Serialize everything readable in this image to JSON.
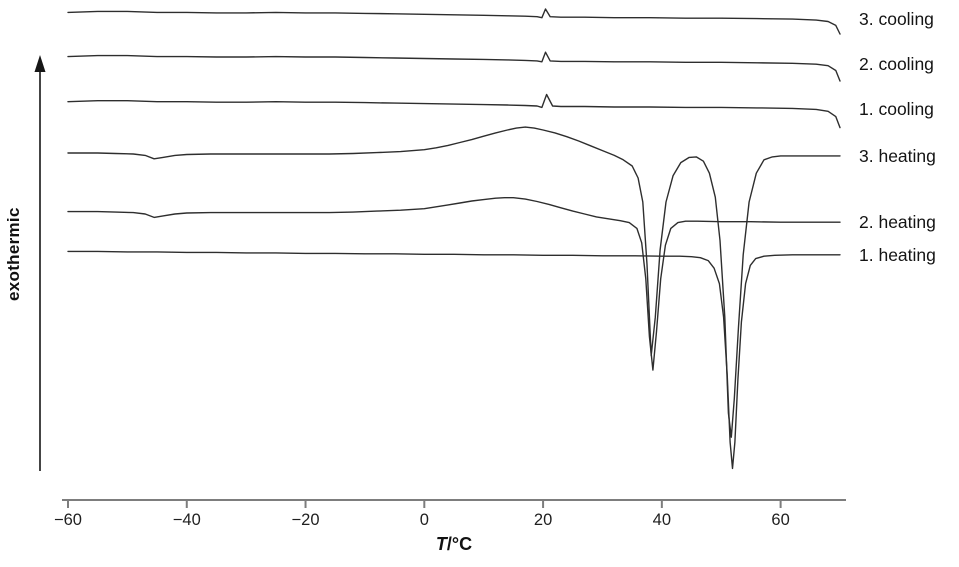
{
  "figure": {
    "ylabel": "exothermic",
    "xlabel": {
      "symbol": "T",
      "unit": "/°C"
    }
  },
  "chart_data": {
    "type": "line",
    "title": "",
    "xlabel": "T/°C",
    "ylabel": "exothermic",
    "x_range": [
      -60,
      70
    ],
    "x_ticks": [
      {
        "value": -60,
        "label": "−60"
      },
      {
        "value": -40,
        "label": "−40"
      },
      {
        "value": -20,
        "label": "−20"
      },
      {
        "value": 0,
        "label": "0"
      },
      {
        "value": 20,
        "label": "20"
      },
      {
        "value": 40,
        "label": "40"
      },
      {
        "value": 60,
        "label": "60"
      }
    ],
    "y_axis_note": "exothermic up, arbitrary units, no numeric scale shown",
    "curve_color": "#2e2e2e",
    "axis_color": "#7d7d7d",
    "legend_position": "right of each curve",
    "series": [
      {
        "name": "3. cooling",
        "points": [
          [
            -60,
            9.95
          ],
          [
            -55,
            9.97
          ],
          [
            -50,
            9.97
          ],
          [
            -45,
            9.95
          ],
          [
            -40,
            9.95
          ],
          [
            -35,
            9.94
          ],
          [
            -30,
            9.94
          ],
          [
            -25,
            9.95
          ],
          [
            -20,
            9.94
          ],
          [
            -15,
            9.94
          ],
          [
            -10,
            9.93
          ],
          [
            -5,
            9.92
          ],
          [
            0,
            9.91
          ],
          [
            5,
            9.9
          ],
          [
            10,
            9.89
          ],
          [
            14,
            9.88
          ],
          [
            17,
            9.87
          ],
          [
            19,
            9.86
          ],
          [
            19.8,
            9.84
          ],
          [
            20.4,
            10.02
          ],
          [
            21.2,
            9.86
          ],
          [
            23,
            9.85
          ],
          [
            27,
            9.85
          ],
          [
            32,
            9.84
          ],
          [
            38,
            9.84
          ],
          [
            44,
            9.83
          ],
          [
            50,
            9.83
          ],
          [
            56,
            9.82
          ],
          [
            62,
            9.81
          ],
          [
            66,
            9.79
          ],
          [
            68,
            9.76
          ],
          [
            69.3,
            9.68
          ],
          [
            70,
            9.5
          ]
        ]
      },
      {
        "name": "2. cooling",
        "points": [
          [
            -60,
            9.03
          ],
          [
            -55,
            9.05
          ],
          [
            -50,
            9.05
          ],
          [
            -45,
            9.03
          ],
          [
            -40,
            9.03
          ],
          [
            -35,
            9.02
          ],
          [
            -30,
            9.02
          ],
          [
            -25,
            9.03
          ],
          [
            -20,
            9.02
          ],
          [
            -15,
            9.02
          ],
          [
            -10,
            9.01
          ],
          [
            -5,
            9.0
          ],
          [
            0,
            8.99
          ],
          [
            5,
            8.98
          ],
          [
            10,
            8.97
          ],
          [
            14,
            8.96
          ],
          [
            17,
            8.95
          ],
          [
            19,
            8.94
          ],
          [
            19.8,
            8.92
          ],
          [
            20.4,
            9.12
          ],
          [
            21.2,
            8.94
          ],
          [
            23,
            8.93
          ],
          [
            27,
            8.93
          ],
          [
            32,
            8.92
          ],
          [
            38,
            8.92
          ],
          [
            44,
            8.91
          ],
          [
            50,
            8.91
          ],
          [
            56,
            8.9
          ],
          [
            62,
            8.89
          ],
          [
            66,
            8.87
          ],
          [
            68,
            8.84
          ],
          [
            69.3,
            8.74
          ],
          [
            70,
            8.52
          ]
        ]
      },
      {
        "name": "1. cooling",
        "points": [
          [
            -60,
            8.09
          ],
          [
            -55,
            8.11
          ],
          [
            -50,
            8.11
          ],
          [
            -45,
            8.09
          ],
          [
            -40,
            8.09
          ],
          [
            -35,
            8.08
          ],
          [
            -30,
            8.08
          ],
          [
            -25,
            8.09
          ],
          [
            -20,
            8.08
          ],
          [
            -15,
            8.08
          ],
          [
            -10,
            8.07
          ],
          [
            -5,
            8.06
          ],
          [
            0,
            8.05
          ],
          [
            5,
            8.04
          ],
          [
            10,
            8.03
          ],
          [
            14,
            8.02
          ],
          [
            17,
            8.01
          ],
          [
            19,
            8.0
          ],
          [
            19.8,
            7.97
          ],
          [
            20.6,
            8.24
          ],
          [
            21.6,
            8.0
          ],
          [
            23,
            7.99
          ],
          [
            27,
            7.99
          ],
          [
            32,
            7.98
          ],
          [
            38,
            7.98
          ],
          [
            44,
            7.97
          ],
          [
            50,
            7.97
          ],
          [
            56,
            7.96
          ],
          [
            62,
            7.95
          ],
          [
            66,
            7.93
          ],
          [
            68,
            7.89
          ],
          [
            69.3,
            7.78
          ],
          [
            70,
            7.55
          ]
        ]
      },
      {
        "name": "3. heating",
        "points": [
          [
            -60,
            7.02
          ],
          [
            -55,
            7.02
          ],
          [
            -52,
            7.01
          ],
          [
            -49,
            7.0
          ],
          [
            -47,
            6.97
          ],
          [
            -45.5,
            6.9
          ],
          [
            -44,
            6.93
          ],
          [
            -42,
            6.97
          ],
          [
            -40,
            6.99
          ],
          [
            -36,
            7.0
          ],
          [
            -32,
            7.0
          ],
          [
            -28,
            7.0
          ],
          [
            -24,
            7.0
          ],
          [
            -20,
            7.0
          ],
          [
            -16,
            7.0
          ],
          [
            -12,
            7.01
          ],
          [
            -8,
            7.03
          ],
          [
            -4,
            7.05
          ],
          [
            0,
            7.09
          ],
          [
            2,
            7.13
          ],
          [
            4,
            7.18
          ],
          [
            6,
            7.24
          ],
          [
            8,
            7.3
          ],
          [
            10,
            7.37
          ],
          [
            12,
            7.44
          ],
          [
            14,
            7.5
          ],
          [
            15.5,
            7.54
          ],
          [
            17,
            7.56
          ],
          [
            18.5,
            7.54
          ],
          [
            20,
            7.5
          ],
          [
            22,
            7.44
          ],
          [
            24,
            7.36
          ],
          [
            26,
            7.27
          ],
          [
            28,
            7.17
          ],
          [
            30,
            7.07
          ],
          [
            32,
            6.97
          ],
          [
            33.5,
            6.88
          ],
          [
            35,
            6.75
          ],
          [
            36,
            6.5
          ],
          [
            36.8,
            6.0
          ],
          [
            37.5,
            4.7
          ],
          [
            38.2,
            2.8
          ],
          [
            38.9,
            3.6
          ],
          [
            39.7,
            5.0
          ],
          [
            40.7,
            6.0
          ],
          [
            41.9,
            6.55
          ],
          [
            43.2,
            6.82
          ],
          [
            44.6,
            6.93
          ],
          [
            45.8,
            6.94
          ],
          [
            47,
            6.85
          ],
          [
            48,
            6.6
          ],
          [
            49,
            6.1
          ],
          [
            49.8,
            5.2
          ],
          [
            50.6,
            3.6
          ],
          [
            51.2,
            1.6
          ],
          [
            51.7,
            1.1
          ],
          [
            52.2,
            1.9
          ],
          [
            52.9,
            3.4
          ],
          [
            53.7,
            4.9
          ],
          [
            54.7,
            6.0
          ],
          [
            55.9,
            6.6
          ],
          [
            57.2,
            6.88
          ],
          [
            58.6,
            6.94
          ],
          [
            60,
            6.96
          ],
          [
            64,
            6.96
          ],
          [
            68,
            6.96
          ],
          [
            70,
            6.96
          ]
        ]
      },
      {
        "name": "2. heating",
        "points": [
          [
            -60,
            5.8
          ],
          [
            -55,
            5.8
          ],
          [
            -52,
            5.79
          ],
          [
            -49,
            5.78
          ],
          [
            -47,
            5.75
          ],
          [
            -45.5,
            5.68
          ],
          [
            -44,
            5.71
          ],
          [
            -42,
            5.75
          ],
          [
            -40,
            5.77
          ],
          [
            -36,
            5.78
          ],
          [
            -32,
            5.78
          ],
          [
            -28,
            5.78
          ],
          [
            -24,
            5.78
          ],
          [
            -20,
            5.78
          ],
          [
            -16,
            5.78
          ],
          [
            -12,
            5.79
          ],
          [
            -8,
            5.81
          ],
          [
            -4,
            5.83
          ],
          [
            0,
            5.86
          ],
          [
            2,
            5.9
          ],
          [
            4,
            5.94
          ],
          [
            6,
            5.98
          ],
          [
            8,
            6.02
          ],
          [
            10,
            6.05
          ],
          [
            12,
            6.08
          ],
          [
            13.5,
            6.09
          ],
          [
            15,
            6.09
          ],
          [
            17,
            6.06
          ],
          [
            19,
            6.01
          ],
          [
            21,
            5.95
          ],
          [
            23,
            5.88
          ],
          [
            25,
            5.81
          ],
          [
            27,
            5.75
          ],
          [
            29,
            5.69
          ],
          [
            31,
            5.65
          ],
          [
            33,
            5.61
          ],
          [
            34.5,
            5.57
          ],
          [
            35.8,
            5.45
          ],
          [
            36.6,
            5.15
          ],
          [
            37.3,
            4.4
          ],
          [
            37.9,
            3.2
          ],
          [
            38.5,
            2.5
          ],
          [
            39.1,
            3.3
          ],
          [
            39.8,
            4.4
          ],
          [
            40.6,
            5.1
          ],
          [
            41.5,
            5.45
          ],
          [
            42.7,
            5.57
          ],
          [
            44,
            5.6
          ],
          [
            46,
            5.6
          ],
          [
            50,
            5.59
          ],
          [
            55,
            5.59
          ],
          [
            60,
            5.58
          ],
          [
            65,
            5.58
          ],
          [
            70,
            5.58
          ]
        ]
      },
      {
        "name": "1. heating",
        "points": [
          [
            -60,
            4.97
          ],
          [
            -55,
            4.97
          ],
          [
            -50,
            4.96
          ],
          [
            -45,
            4.96
          ],
          [
            -40,
            4.95
          ],
          [
            -35,
            4.95
          ],
          [
            -30,
            4.94
          ],
          [
            -25,
            4.94
          ],
          [
            -20,
            4.93
          ],
          [
            -15,
            4.93
          ],
          [
            -10,
            4.92
          ],
          [
            -5,
            4.92
          ],
          [
            0,
            4.91
          ],
          [
            5,
            4.91
          ],
          [
            10,
            4.9
          ],
          [
            15,
            4.9
          ],
          [
            20,
            4.89
          ],
          [
            25,
            4.89
          ],
          [
            30,
            4.88
          ],
          [
            35,
            4.88
          ],
          [
            40,
            4.87
          ],
          [
            43,
            4.87
          ],
          [
            45,
            4.86
          ],
          [
            46.5,
            4.84
          ],
          [
            47.8,
            4.78
          ],
          [
            48.8,
            4.62
          ],
          [
            49.7,
            4.3
          ],
          [
            50.4,
            3.6
          ],
          [
            51.0,
            2.4
          ],
          [
            51.5,
            1.0
          ],
          [
            51.9,
            0.45
          ],
          [
            52.3,
            1.0
          ],
          [
            52.8,
            2.3
          ],
          [
            53.4,
            3.5
          ],
          [
            54.1,
            4.3
          ],
          [
            54.9,
            4.68
          ],
          [
            55.8,
            4.82
          ],
          [
            57.2,
            4.87
          ],
          [
            59,
            4.89
          ],
          [
            62,
            4.9
          ],
          [
            66,
            4.9
          ],
          [
            70,
            4.9
          ]
        ]
      }
    ]
  }
}
